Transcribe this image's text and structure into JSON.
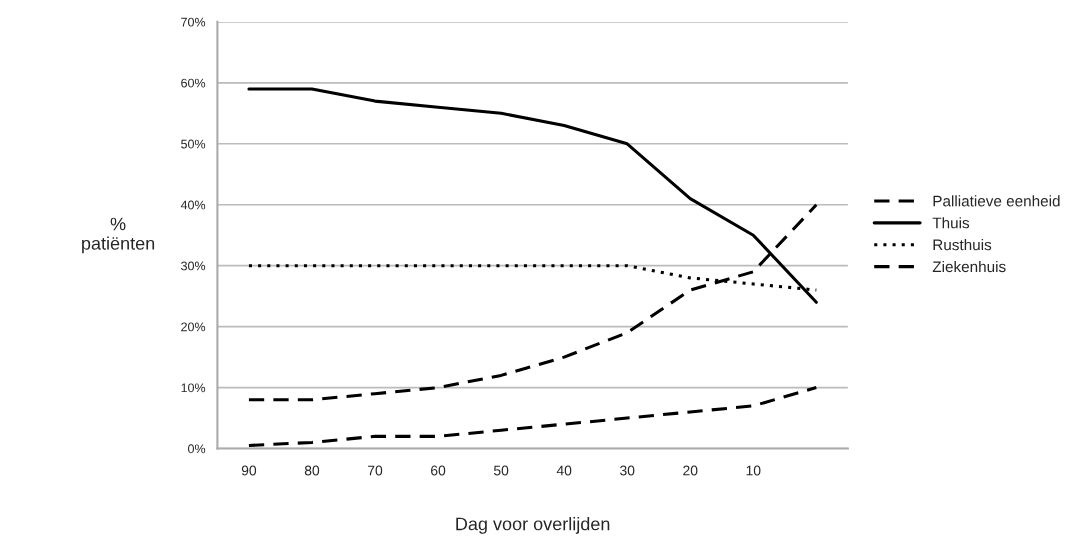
{
  "chart_data": {
    "type": "line",
    "xlabel": "Dag voor overlijden",
    "ylabel": "%\npatiënten",
    "categories": [
      "90",
      "80",
      "70",
      "60",
      "50",
      "40",
      "30",
      "20",
      "10",
      null
    ],
    "ylim": [
      0,
      70
    ],
    "yticks": [
      {
        "value": 0,
        "label": "0%"
      },
      {
        "value": 10,
        "label": "10%"
      },
      {
        "value": 20,
        "label": "20%"
      },
      {
        "value": 30,
        "label": "30%"
      },
      {
        "value": 40,
        "label": "40%"
      },
      {
        "value": 50,
        "label": "50%"
      },
      {
        "value": 60,
        "label": "60%"
      },
      {
        "value": 70,
        "label": "70%"
      }
    ],
    "grid": "y",
    "legend": "right",
    "marker": "none",
    "series": [
      {
        "name": "Palliatieve eenheid",
        "color": "#000000",
        "line_style": "dashed",
        "values": [
          0.5,
          1,
          2,
          2,
          3,
          4,
          5,
          6,
          7,
          10
        ]
      },
      {
        "name": "Thuis",
        "color": "#000000",
        "line_style": "solid",
        "values": [
          59,
          59,
          57,
          56,
          55,
          53,
          50,
          41,
          35,
          24
        ]
      },
      {
        "name": "Rusthuis",
        "color": "#000000",
        "line_style": "dotted",
        "values": [
          30,
          30,
          30,
          30,
          30,
          30,
          30,
          28,
          27,
          26
        ]
      },
      {
        "name": "Ziekenhuis",
        "color": "#000000",
        "line_style": "dashed",
        "values": [
          8,
          8,
          9,
          10,
          12,
          15,
          19,
          26,
          29,
          40
        ]
      }
    ]
  }
}
